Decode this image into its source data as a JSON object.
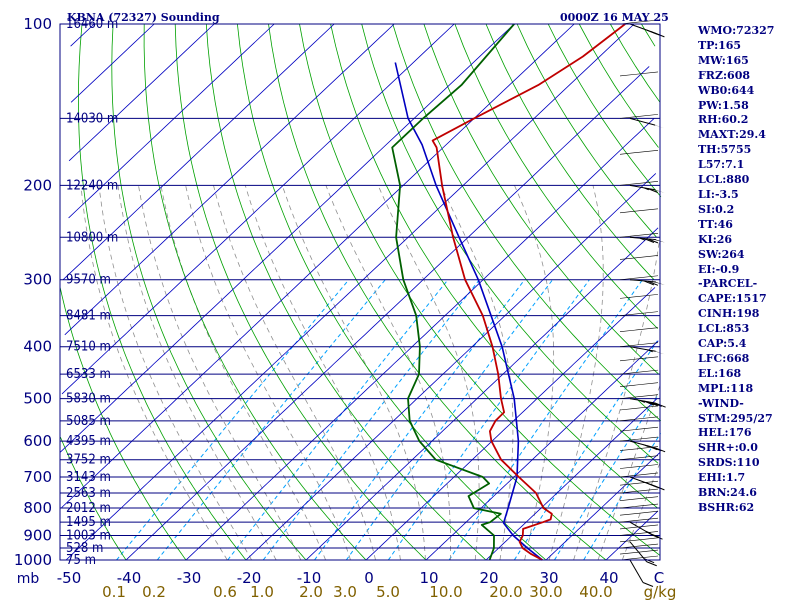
{
  "header": {
    "title": "KBNA (72327) Sounding",
    "time": "0000Z 16 MAY 25"
  },
  "stats": [
    "WMO:72327",
    "TP:165",
    "MW:165",
    "FRZ:608",
    "WB0:644",
    "PW:1.58",
    "RH:60.2",
    "MAXT:29.4",
    "TH:5755",
    "L57:7.1",
    "LCL:880",
    "LI:-3.5",
    "SI:0.2",
    "TT:46",
    "KI:26",
    "SW:264",
    "EI:-0.9",
    "-PARCEL-",
    "CAPE:1517",
    "CINH:198",
    "LCL:853",
    "CAP:5.4",
    "LFC:668",
    "EL:168",
    "MPL:118",
    "-WIND-",
    "STM:295/27",
    "HEL:176",
    "SHR+:0.0",
    "SRDS:110",
    "EHI:1.7",
    "BRN:24.6",
    "BSHR:62"
  ],
  "colors": {
    "frame": "#000080",
    "isobar": "#000080",
    "isotherm": "#0000c0",
    "dry_adiabat": "#00a000",
    "moist_adiabat": "#909090",
    "mixing_ratio": "#00a0ff",
    "temperature": "#c00000",
    "dewpoint": "#006000",
    "parcel": "#0000c0",
    "temp_axis_label": "#000080",
    "mixing_ratio_label": "#806000",
    "wind_barb": "#000000"
  },
  "chart_data": {
    "type": "skew-t",
    "title": "KBNA (72327) Sounding",
    "valid_time": "0000Z 16 MAY 25",
    "y_axis": {
      "scale": "log",
      "unit": "mb",
      "range": [
        1000,
        100
      ],
      "ticks": [
        100,
        200,
        300,
        400,
        500,
        600,
        700,
        800,
        900,
        1000
      ],
      "heights": [
        {
          "p": 100,
          "label": "16460 m"
        },
        {
          "p": 150,
          "label": "14030 m"
        },
        {
          "p": 200,
          "label": "12240 m"
        },
        {
          "p": 250,
          "label": "10800 m"
        },
        {
          "p": 300,
          "label": "9570 m"
        },
        {
          "p": 350,
          "label": "8481 m"
        },
        {
          "p": 400,
          "label": "7510 m"
        },
        {
          "p": 450,
          "label": "6533 m"
        },
        {
          "p": 500,
          "label": "5830 m"
        },
        {
          "p": 550,
          "label": "5085 m"
        },
        {
          "p": 600,
          "label": "4395 m"
        },
        {
          "p": 650,
          "label": "3752 m"
        },
        {
          "p": 700,
          "label": "3143 m"
        },
        {
          "p": 750,
          "label": "2563 m"
        },
        {
          "p": 800,
          "label": "2012 m"
        },
        {
          "p": 850,
          "label": "1495 m"
        },
        {
          "p": 900,
          "label": "1003 m"
        },
        {
          "p": 950,
          "label": "528 m"
        },
        {
          "p": 1000,
          "label": "75 m"
        }
      ]
    },
    "x_axis": {
      "unit_label": "mb",
      "temperature_ticks": [
        -50,
        -40,
        -30,
        -20,
        -10,
        0,
        10,
        20,
        30,
        40
      ],
      "temperature_tick_labels": [
        "-50",
        "-40",
        "-30",
        "-20",
        "-10",
        "0",
        "10",
        "20",
        "30",
        "40"
      ],
      "mixing_ratio_ticks": [
        "0.1",
        "0.2",
        "0.6",
        "1.0",
        "2.0",
        "3.0",
        "5.0",
        "10.0",
        "20.0",
        "30.0",
        "40.0"
      ],
      "mixing_ratio_unit": "g/kg",
      "wind_scale_label": "C"
    },
    "temperature_profile": [
      {
        "p": 1000,
        "t": 29.4
      },
      {
        "p": 975,
        "t": 26.5
      },
      {
        "p": 950,
        "t": 24.0
      },
      {
        "p": 925,
        "t": 22.4
      },
      {
        "p": 900,
        "t": 21.8
      },
      {
        "p": 875,
        "t": 20.7
      },
      {
        "p": 850,
        "t": 22.8
      },
      {
        "p": 840,
        "t": 23.6
      },
      {
        "p": 820,
        "t": 22.8
      },
      {
        "p": 800,
        "t": 20.4
      },
      {
        "p": 750,
        "t": 16.5
      },
      {
        "p": 700,
        "t": 10.8
      },
      {
        "p": 650,
        "t": 4.8
      },
      {
        "p": 600,
        "t": -0.1
      },
      {
        "p": 575,
        "t": -2.1
      },
      {
        "p": 550,
        "t": -3.0
      },
      {
        "p": 530,
        "t": -3.1
      },
      {
        "p": 500,
        "t": -6.0
      },
      {
        "p": 450,
        "t": -10.8
      },
      {
        "p": 400,
        "t": -16.6
      },
      {
        "p": 350,
        "t": -23.7
      },
      {
        "p": 300,
        "t": -33.0
      },
      {
        "p": 250,
        "t": -42.5
      },
      {
        "p": 200,
        "t": -53.5
      },
      {
        "p": 170,
        "t": -61.1
      },
      {
        "p": 165,
        "t": -63.0
      },
      {
        "p": 150,
        "t": -60.0
      },
      {
        "p": 130,
        "t": -55.2
      },
      {
        "p": 115,
        "t": -52.8
      },
      {
        "p": 100,
        "t": -51.5
      }
    ],
    "dewpoint_profile": [
      {
        "p": 1000,
        "t": 20.6
      },
      {
        "p": 950,
        "t": 19.2
      },
      {
        "p": 900,
        "t": 17.0
      },
      {
        "p": 860,
        "t": 13.1
      },
      {
        "p": 850,
        "t": 14.0
      },
      {
        "p": 820,
        "t": 14.3
      },
      {
        "p": 800,
        "t": 8.8
      },
      {
        "p": 760,
        "t": 5.8
      },
      {
        "p": 720,
        "t": 7.0
      },
      {
        "p": 700,
        "t": 4.8
      },
      {
        "p": 650,
        "t": -6.1
      },
      {
        "p": 600,
        "t": -12.1
      },
      {
        "p": 550,
        "t": -17.3
      },
      {
        "p": 500,
        "t": -21.5
      },
      {
        "p": 450,
        "t": -24.0
      },
      {
        "p": 400,
        "t": -28.7
      },
      {
        "p": 350,
        "t": -34.8
      },
      {
        "p": 300,
        "t": -43.3
      },
      {
        "p": 250,
        "t": -52.0
      },
      {
        "p": 200,
        "t": -60.5
      },
      {
        "p": 170,
        "t": -68.5
      },
      {
        "p": 150,
        "t": -68.5
      },
      {
        "p": 130,
        "t": -68.0
      },
      {
        "p": 100,
        "t": -70.0
      }
    ],
    "parcel_profile": [
      {
        "p": 1000,
        "t": 29.4
      },
      {
        "p": 950,
        "t": 24.8
      },
      {
        "p": 900,
        "t": 20.2
      },
      {
        "p": 853,
        "t": 16.4
      },
      {
        "p": 800,
        "t": 14.5
      },
      {
        "p": 700,
        "t": 10.5
      },
      {
        "p": 600,
        "t": 4.4
      },
      {
        "p": 500,
        "t": -3.8
      },
      {
        "p": 400,
        "t": -15.0
      },
      {
        "p": 300,
        "t": -30.8
      },
      {
        "p": 250,
        "t": -41.5
      },
      {
        "p": 200,
        "t": -54.5
      },
      {
        "p": 168,
        "t": -64.0
      },
      {
        "p": 150,
        "t": -71.0
      },
      {
        "p": 118,
        "t": -83.0
      }
    ],
    "wind_barbs": [
      {
        "p": 1000,
        "dir": 210,
        "spd": 10
      },
      {
        "p": 925,
        "dir": 220,
        "spd": 20
      },
      {
        "p": 850,
        "dir": 240,
        "spd": 25
      },
      {
        "p": 700,
        "dir": 250,
        "spd": 30
      },
      {
        "p": 600,
        "dir": 255,
        "spd": 35
      },
      {
        "p": 500,
        "dir": 260,
        "spd": 45
      },
      {
        "p": 400,
        "dir": 260,
        "spd": 55
      },
      {
        "p": 300,
        "dir": 265,
        "spd": 70
      },
      {
        "p": 250,
        "dir": 265,
        "spd": 75
      },
      {
        "p": 200,
        "dir": 260,
        "spd": 65
      },
      {
        "p": 150,
        "dir": 255,
        "spd": 50
      },
      {
        "p": 100,
        "dir": 250,
        "spd": 30
      }
    ],
    "grid": true,
    "legend": "none"
  }
}
